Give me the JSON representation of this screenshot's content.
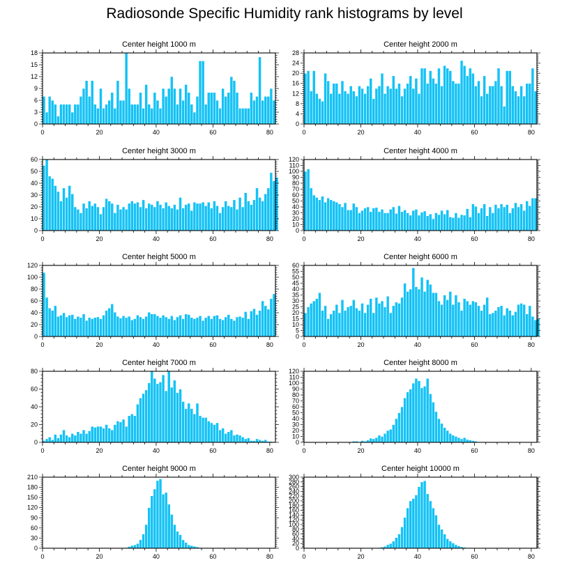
{
  "title": "Radiosonde Specific Humidity rank histograms by level",
  "colors": {
    "bar": "#14C2F5",
    "bar_edge": "#ffffff",
    "axis": "#000000",
    "background": "#ffffff"
  },
  "chart_data": [
    {
      "type": "bar",
      "title": "Center height 1000 m",
      "xlim": [
        0,
        82
      ],
      "ylim": [
        0,
        18
      ],
      "xticks": [
        0,
        20,
        40,
        60,
        80
      ],
      "yticks": [
        0,
        3,
        6,
        9,
        12,
        15,
        18
      ],
      "values": [
        7,
        3,
        7,
        6,
        5,
        2,
        5,
        5,
        5,
        5,
        3,
        5,
        5,
        7,
        9,
        11,
        7,
        11,
        5,
        4,
        9,
        4,
        5,
        6,
        8,
        4,
        11,
        6,
        6,
        18,
        9,
        5,
        5,
        5,
        8,
        4,
        10,
        5,
        4,
        8,
        6,
        4,
        9,
        7,
        9,
        12,
        9,
        5,
        9,
        6,
        10,
        8,
        5,
        3,
        7,
        16,
        16,
        5,
        8,
        8,
        8,
        6,
        4,
        9,
        7,
        8,
        12,
        11,
        8,
        4,
        4,
        4,
        4,
        8,
        6,
        7,
        17,
        6,
        7,
        7,
        9,
        6
      ]
    },
    {
      "type": "bar",
      "title": "Center height 2000 m",
      "xlim": [
        0,
        82
      ],
      "ylim": [
        0,
        28
      ],
      "xticks": [
        0,
        20,
        40,
        60,
        80
      ],
      "yticks": [
        0,
        4,
        8,
        12,
        16,
        20,
        24,
        28
      ],
      "values": [
        20,
        21,
        13,
        21,
        12,
        10,
        9,
        20,
        17,
        12,
        16,
        16,
        12,
        17,
        13,
        12,
        15,
        13,
        11,
        15,
        14,
        12,
        15,
        18,
        10,
        14,
        15,
        20,
        12,
        15,
        14,
        19,
        14,
        16,
        11,
        14,
        16,
        19,
        14,
        18,
        12,
        22,
        22,
        16,
        21,
        18,
        16,
        22,
        15,
        23,
        22,
        21,
        17,
        16,
        16,
        25,
        23,
        19,
        22,
        20,
        15,
        17,
        11,
        19,
        12,
        15,
        15,
        17,
        22,
        15,
        7,
        21,
        21,
        15,
        13,
        11,
        15,
        11,
        16,
        16,
        22,
        13
      ]
    },
    {
      "type": "bar",
      "title": "Center height 3000 m",
      "xlim": [
        0,
        82
      ],
      "ylim": [
        0,
        60
      ],
      "xticks": [
        0,
        20,
        40,
        60,
        80
      ],
      "yticks": [
        0,
        10,
        20,
        30,
        40,
        50,
        60
      ],
      "values": [
        55,
        60,
        46,
        44,
        38,
        33,
        25,
        36,
        28,
        38,
        31,
        20,
        18,
        15,
        23,
        19,
        25,
        21,
        23,
        20,
        14,
        20,
        27,
        25,
        23,
        15,
        22,
        18,
        20,
        18,
        23,
        25,
        23,
        24,
        20,
        26,
        19,
        23,
        22,
        20,
        25,
        22,
        19,
        24,
        21,
        19,
        22,
        18,
        28,
        19,
        22,
        23,
        17,
        24,
        23,
        23,
        24,
        21,
        24,
        19,
        25,
        21,
        15,
        20,
        25,
        21,
        20,
        26,
        18,
        28,
        20,
        32,
        25,
        22,
        26,
        36,
        28,
        25,
        31,
        36,
        49,
        42,
        45
      ]
    },
    {
      "type": "bar",
      "title": "Center height 4000 m",
      "xlim": [
        0,
        82
      ],
      "ylim": [
        0,
        120
      ],
      "xticks": [
        0,
        20,
        40,
        60,
        80
      ],
      "yticks": [
        0,
        10,
        20,
        30,
        40,
        50,
        60,
        70,
        80,
        90,
        100,
        110,
        120
      ],
      "values": [
        100,
        104,
        72,
        60,
        56,
        52,
        58,
        48,
        55,
        52,
        50,
        48,
        45,
        40,
        47,
        35,
        35,
        46,
        40,
        30,
        34,
        38,
        40,
        32,
        38,
        39,
        32,
        36,
        30,
        30,
        36,
        40,
        29,
        42,
        32,
        35,
        30,
        26,
        34,
        36,
        26,
        31,
        33,
        25,
        28,
        20,
        30,
        27,
        34,
        28,
        35,
        23,
        22,
        30,
        22,
        27,
        26,
        37,
        23,
        45,
        41,
        30,
        38,
        45,
        25,
        40,
        30,
        44,
        38,
        45,
        40,
        44,
        30,
        38,
        47,
        40,
        45,
        34,
        50,
        42,
        55,
        55
      ]
    },
    {
      "type": "bar",
      "title": "Center height 5000 m",
      "xlim": [
        0,
        82
      ],
      "ylim": [
        0,
        120
      ],
      "xticks": [
        0,
        20,
        40,
        60,
        80
      ],
      "yticks": [
        0,
        20,
        40,
        60,
        80,
        100,
        120
      ],
      "values": [
        108,
        66,
        48,
        44,
        52,
        34,
        36,
        40,
        33,
        36,
        37,
        30,
        34,
        32,
        38,
        27,
        32,
        30,
        32,
        33,
        30,
        36,
        44,
        48,
        55,
        41,
        34,
        31,
        35,
        32,
        34,
        28,
        30,
        36,
        33,
        30,
        34,
        41,
        38,
        38,
        35,
        32,
        36,
        33,
        30,
        35,
        28,
        33,
        36,
        30,
        38,
        37,
        32,
        30,
        32,
        35,
        27,
        32,
        35,
        30,
        35,
        36,
        30,
        28,
        33,
        37,
        30,
        27,
        33,
        34,
        32,
        42,
        30,
        43,
        47,
        37,
        44,
        60,
        52,
        46,
        64,
        72
      ]
    },
    {
      "type": "bar",
      "title": "Center height 6000 m",
      "xlim": [
        0,
        82
      ],
      "ylim": [
        0,
        60
      ],
      "xticks": [
        0,
        20,
        40,
        60,
        80
      ],
      "yticks": [
        0,
        5,
        10,
        15,
        20,
        25,
        30,
        35,
        40,
        45,
        50,
        55,
        60
      ],
      "values": [
        20,
        25,
        28,
        30,
        32,
        37,
        22,
        26,
        15,
        19,
        22,
        27,
        20,
        31,
        22,
        25,
        26,
        31,
        24,
        22,
        28,
        20,
        27,
        32,
        20,
        33,
        28,
        30,
        25,
        34,
        20,
        26,
        29,
        28,
        33,
        45,
        38,
        40,
        58,
        42,
        40,
        50,
        38,
        48,
        44,
        37,
        37,
        30,
        27,
        35,
        31,
        38,
        27,
        35,
        29,
        22,
        32,
        30,
        27,
        30,
        29,
        26,
        22,
        27,
        33,
        19,
        20,
        22,
        25,
        26,
        18,
        24,
        22,
        18,
        21,
        27,
        28,
        27,
        19,
        26,
        17,
        14,
        15
      ]
    },
    {
      "type": "bar",
      "title": "Center height 7000 m",
      "xlim": [
        0,
        82
      ],
      "ylim": [
        0,
        80
      ],
      "xticks": [
        0,
        20,
        40,
        60,
        80
      ],
      "yticks": [
        0,
        20,
        40,
        60,
        80
      ],
      "values": [
        2,
        4,
        6,
        3,
        9,
        5,
        9,
        14,
        8,
        6,
        10,
        8,
        12,
        10,
        14,
        10,
        13,
        18,
        17,
        18,
        18,
        16,
        20,
        16,
        14,
        20,
        24,
        23,
        26,
        18,
        30,
        32,
        30,
        43,
        50,
        55,
        59,
        67,
        80,
        72,
        66,
        68,
        76,
        58,
        80,
        62,
        70,
        56,
        60,
        46,
        38,
        44,
        38,
        32,
        44,
        30,
        28,
        28,
        24,
        22,
        20,
        22,
        14,
        16,
        10,
        12,
        14,
        8,
        9,
        8,
        6,
        4,
        5,
        2,
        2,
        4,
        3,
        2,
        3,
        1,
        1
      ]
    },
    {
      "type": "bar",
      "title": "Center height 8000 m",
      "xlim": [
        0,
        82
      ],
      "ylim": [
        0,
        120
      ],
      "xticks": [
        0,
        20,
        40,
        60,
        80
      ],
      "yticks": [
        0,
        10,
        20,
        30,
        40,
        50,
        60,
        70,
        80,
        90,
        100,
        110,
        120
      ],
      "values": [
        0,
        0,
        0,
        0,
        0,
        0,
        0,
        0,
        0,
        0,
        0,
        0,
        0,
        0,
        0,
        0,
        1,
        2,
        2,
        1,
        3,
        2,
        4,
        7,
        6,
        8,
        12,
        10,
        15,
        20,
        22,
        30,
        40,
        50,
        60,
        75,
        85,
        90,
        100,
        108,
        104,
        92,
        95,
        108,
        82,
        68,
        52,
        40,
        32,
        25,
        20,
        15,
        12,
        10,
        8,
        6,
        8,
        5,
        4,
        3,
        2,
        1,
        1,
        0,
        0,
        0,
        0,
        0,
        0,
        0,
        0,
        0,
        0,
        0,
        0,
        0,
        0,
        0,
        0,
        0,
        0,
        0
      ]
    },
    {
      "type": "bar",
      "title": "Center height 9000 m",
      "xlim": [
        0,
        82
      ],
      "ylim": [
        0,
        210
      ],
      "xticks": [
        0,
        20,
        40,
        60,
        80
      ],
      "yticks": [
        0,
        30,
        60,
        90,
        120,
        150,
        180,
        210
      ],
      "values": [
        0,
        0,
        0,
        0,
        0,
        0,
        0,
        0,
        0,
        0,
        0,
        0,
        0,
        0,
        0,
        0,
        0,
        0,
        0,
        0,
        0,
        0,
        0,
        0,
        0,
        0,
        0,
        0,
        1,
        2,
        5,
        8,
        10,
        14,
        25,
        42,
        70,
        120,
        155,
        175,
        200,
        205,
        160,
        165,
        130,
        100,
        70,
        50,
        40,
        25,
        17,
        10,
        8,
        6,
        4,
        2,
        1,
        1,
        0,
        0,
        0,
        0,
        0,
        0,
        0,
        0,
        0,
        0,
        0,
        0,
        0,
        0,
        0,
        0,
        0,
        0,
        0,
        0,
        0,
        0,
        0,
        0
      ]
    },
    {
      "type": "bar",
      "title": "Center height 10000 m",
      "xlim": [
        0,
        82
      ],
      "ylim": [
        0,
        300
      ],
      "xticks": [
        0,
        20,
        40,
        60,
        80
      ],
      "yticks": [
        0,
        20,
        40,
        60,
        80,
        100,
        120,
        140,
        160,
        180,
        200,
        220,
        240,
        260,
        280,
        300
      ],
      "values": [
        0,
        0,
        0,
        0,
        0,
        0,
        0,
        0,
        0,
        0,
        0,
        0,
        0,
        0,
        0,
        0,
        0,
        0,
        0,
        0,
        0,
        0,
        0,
        0,
        1,
        2,
        3,
        5,
        8,
        15,
        20,
        30,
        45,
        60,
        90,
        130,
        170,
        200,
        210,
        225,
        260,
        280,
        285,
        230,
        200,
        170,
        140,
        100,
        80,
        60,
        40,
        30,
        22,
        15,
        10,
        6,
        4,
        2,
        1,
        1,
        0,
        0,
        0,
        0,
        0,
        0,
        0,
        0,
        0,
        0,
        0,
        0,
        0,
        0,
        0,
        0,
        0,
        0,
        0,
        0,
        0
      ]
    }
  ]
}
